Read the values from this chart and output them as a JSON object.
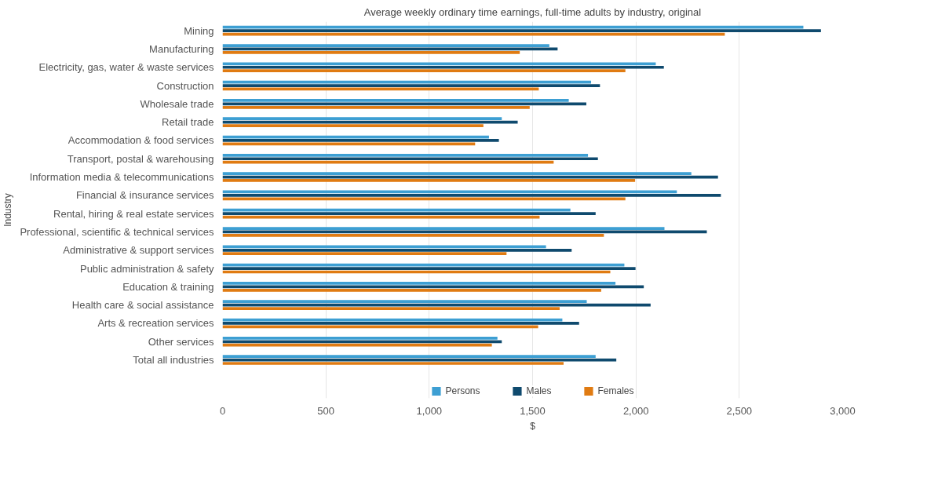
{
  "chart_data": {
    "type": "bar",
    "orientation": "horizontal",
    "title": "Average weekly ordinary time earnings, full-time adults by industry, original",
    "xlabel": "$",
    "ylabel": "Industry",
    "categories": [
      "Mining",
      "Manufacturing",
      "Electricity, gas, water & waste services",
      "Construction",
      "Wholesale trade",
      "Retail trade",
      "Accommodation & food services",
      "Transport, postal & warehousing",
      "Information media & telecommunications",
      "Financial & insurance services",
      "Rental, hiring & real estate services",
      "Professional, scientific & technical services",
      "Administrative & support services",
      "Public administration & safety",
      "Education & training",
      "Health care & social assistance",
      "Arts & recreation services",
      "Other services",
      "Total all industries"
    ],
    "series": [
      {
        "name": "Persons",
        "color": "#3d9fd3",
        "values": [
          2810,
          1581,
          2096,
          1783,
          1675,
          1351,
          1289,
          1768,
          2268,
          2198,
          1683,
          2138,
          1565,
          1944,
          1901,
          1762,
          1644,
          1330,
          1805
        ]
      },
      {
        "name": "Males",
        "color": "#0f4a6e",
        "values": [
          2895,
          1621,
          2135,
          1826,
          1760,
          1428,
          1337,
          1816,
          2397,
          2411,
          1805,
          2343,
          1689,
          1998,
          2038,
          2071,
          1725,
          1351,
          1905
        ]
      },
      {
        "name": "Females",
        "color": "#e07b12",
        "values": [
          2430,
          1438,
          1949,
          1530,
          1486,
          1262,
          1222,
          1602,
          1996,
          1949,
          1534,
          1845,
          1374,
          1876,
          1832,
          1631,
          1527,
          1303,
          1650
        ]
      }
    ],
    "xlim": [
      0,
      3000
    ],
    "xticks": [
      0,
      {
        "value": 500,
        "label": "500"
      },
      {
        "value": 1000,
        "label": "1,000"
      },
      {
        "value": 1500,
        "label": "1,500"
      },
      {
        "value": 2000,
        "label": "2,000"
      },
      {
        "value": 2500,
        "label": "2,500"
      },
      {
        "value": 3000,
        "label": "3,000"
      }
    ],
    "grid": "x",
    "legend": "bottom"
  }
}
